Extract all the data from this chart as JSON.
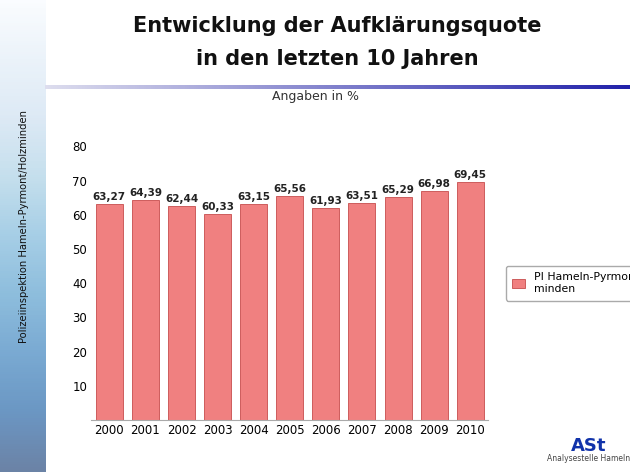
{
  "title_line1": "Entwicklung der Aufklärungsquote",
  "title_line2": "in den letzten 10 Jahren",
  "subtitle": "Angaben in %",
  "years": [
    2000,
    2001,
    2002,
    2003,
    2004,
    2005,
    2006,
    2007,
    2008,
    2009,
    2010
  ],
  "values": [
    63.27,
    64.39,
    62.44,
    60.33,
    63.15,
    65.56,
    61.93,
    63.51,
    65.29,
    66.98,
    69.45
  ],
  "bar_color": "#F08080",
  "bar_edge_color": "#CD5C5C",
  "ylim": [
    0,
    80
  ],
  "yticks": [
    0,
    10,
    20,
    30,
    40,
    50,
    60,
    70,
    80
  ],
  "legend_label": "PI Hameln-Pyrmont / Holz-\nminden",
  "bg_color": "#FFFFFF",
  "sidebar_gradient_left": "#D0D4E8",
  "sidebar_gradient_right": "#B0B8D8",
  "sidebar_text": "Polizeiinspektion Hameln-Pyrmont/Holzminden",
  "title_fontsize": 15,
  "bar_label_fontsize": 7.5,
  "axis_label_fontsize": 9,
  "subtitle_fontsize": 9,
  "decorative_line_color_left": "#CCCCEE",
  "decorative_line_color_right": "#2222AA"
}
